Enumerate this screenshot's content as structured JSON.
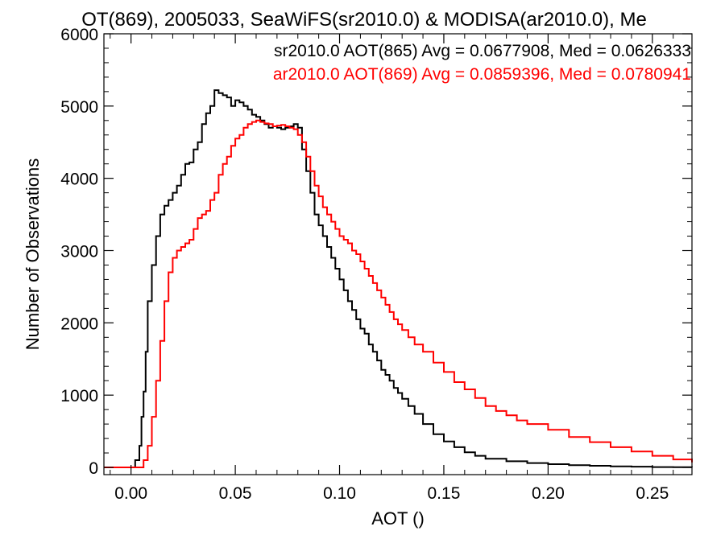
{
  "chart_data": {
    "type": "line",
    "title": "OT(869), 2005033, SeaWiFS(sr2010.0) & MODISA(ar2010.0), Me",
    "xlabel": "AOT ()",
    "ylabel": "Number of Observations",
    "xlim": [
      -0.013,
      0.269
    ],
    "ylim": [
      -100,
      6000
    ],
    "xticks": [
      0.0,
      0.05,
      0.1,
      0.15,
      0.2,
      0.25
    ],
    "xtick_labels": [
      "0.00",
      "0.05",
      "0.10",
      "0.15",
      "0.20",
      "0.25"
    ],
    "yticks": [
      0,
      1000,
      2000,
      3000,
      4000,
      5000,
      6000
    ],
    "ytick_labels": [
      "0",
      "1000",
      "2000",
      "3000",
      "4000",
      "5000",
      "6000"
    ],
    "grid": false,
    "legend_position": "top-right",
    "style": "step",
    "annotations": [
      {
        "text": "sr2010.0 AOT(865) Avg = 0.0677908, Med = 0.0626333",
        "color": "#000000"
      },
      {
        "text": "ar2010.0 AOT(869) Avg = 0.0859396, Med = 0.0780941",
        "color": "#ff0000"
      }
    ],
    "series": [
      {
        "name": "sr2010.0 AOT(865)",
        "color": "#000000",
        "x": [
          -0.013,
          0.0,
          0.002,
          0.004,
          0.005,
          0.006,
          0.007,
          0.008,
          0.01,
          0.012,
          0.014,
          0.016,
          0.018,
          0.02,
          0.022,
          0.024,
          0.026,
          0.028,
          0.03,
          0.032,
          0.034,
          0.036,
          0.038,
          0.04,
          0.042,
          0.044,
          0.046,
          0.048,
          0.05,
          0.052,
          0.054,
          0.056,
          0.058,
          0.06,
          0.062,
          0.064,
          0.066,
          0.068,
          0.07,
          0.072,
          0.074,
          0.076,
          0.078,
          0.08,
          0.082,
          0.084,
          0.086,
          0.088,
          0.09,
          0.092,
          0.094,
          0.096,
          0.098,
          0.1,
          0.102,
          0.104,
          0.106,
          0.108,
          0.11,
          0.112,
          0.114,
          0.116,
          0.118,
          0.12,
          0.122,
          0.124,
          0.126,
          0.128,
          0.13,
          0.133,
          0.136,
          0.14,
          0.145,
          0.15,
          0.155,
          0.16,
          0.165,
          0.17,
          0.18,
          0.19,
          0.2,
          0.21,
          0.22,
          0.23,
          0.24,
          0.25,
          0.26,
          0.269
        ],
        "y": [
          0,
          0,
          100,
          300,
          700,
          1050,
          1600,
          2300,
          2800,
          3200,
          3500,
          3620,
          3700,
          3800,
          3900,
          4050,
          4200,
          4220,
          4400,
          4500,
          4750,
          4900,
          5000,
          5220,
          5180,
          5150,
          5120,
          5000,
          5080,
          5050,
          5000,
          4950,
          4880,
          4850,
          4800,
          4750,
          4700,
          4720,
          4700,
          4680,
          4700,
          4720,
          4750,
          4700,
          4400,
          4100,
          3800,
          3500,
          3350,
          3200,
          3050,
          2900,
          2750,
          2600,
          2450,
          2300,
          2180,
          2050,
          1920,
          1850,
          1700,
          1600,
          1480,
          1350,
          1280,
          1200,
          1100,
          1030,
          950,
          850,
          740,
          600,
          460,
          360,
          280,
          210,
          160,
          120,
          85,
          60,
          45,
          30,
          22,
          15,
          10,
          5,
          3,
          2
        ]
      },
      {
        "name": "ar2010.0 AOT(869)",
        "color": "#ff0000",
        "x": [
          -0.013,
          0.004,
          0.006,
          0.008,
          0.01,
          0.012,
          0.014,
          0.016,
          0.018,
          0.02,
          0.022,
          0.024,
          0.026,
          0.028,
          0.03,
          0.032,
          0.034,
          0.036,
          0.038,
          0.04,
          0.042,
          0.044,
          0.046,
          0.048,
          0.05,
          0.052,
          0.054,
          0.056,
          0.058,
          0.06,
          0.062,
          0.064,
          0.066,
          0.068,
          0.07,
          0.072,
          0.074,
          0.076,
          0.078,
          0.08,
          0.082,
          0.084,
          0.086,
          0.088,
          0.09,
          0.092,
          0.094,
          0.096,
          0.098,
          0.1,
          0.102,
          0.104,
          0.106,
          0.108,
          0.11,
          0.112,
          0.114,
          0.116,
          0.118,
          0.12,
          0.122,
          0.124,
          0.126,
          0.128,
          0.13,
          0.133,
          0.136,
          0.14,
          0.145,
          0.15,
          0.155,
          0.16,
          0.165,
          0.17,
          0.175,
          0.18,
          0.185,
          0.19,
          0.2,
          0.21,
          0.22,
          0.23,
          0.24,
          0.25,
          0.26,
          0.269
        ],
        "y": [
          0,
          0,
          100,
          300,
          700,
          1200,
          1750,
          2300,
          2700,
          2900,
          3000,
          3050,
          3100,
          3150,
          3300,
          3450,
          3500,
          3550,
          3700,
          3800,
          4050,
          4200,
          4300,
          4450,
          4550,
          4600,
          4700,
          4750,
          4780,
          4800,
          4780,
          4760,
          4750,
          4720,
          4730,
          4740,
          4720,
          4700,
          4680,
          4600,
          4500,
          4300,
          4100,
          3900,
          3750,
          3600,
          3500,
          3400,
          3300,
          3200,
          3150,
          3100,
          3000,
          2950,
          2850,
          2750,
          2650,
          2550,
          2450,
          2350,
          2250,
          2150,
          2050,
          1980,
          1900,
          1800,
          1700,
          1600,
          1450,
          1320,
          1180,
          1080,
          960,
          850,
          780,
          720,
          650,
          600,
          520,
          420,
          350,
          280,
          220,
          160,
          110,
          70
        ]
      }
    ]
  }
}
